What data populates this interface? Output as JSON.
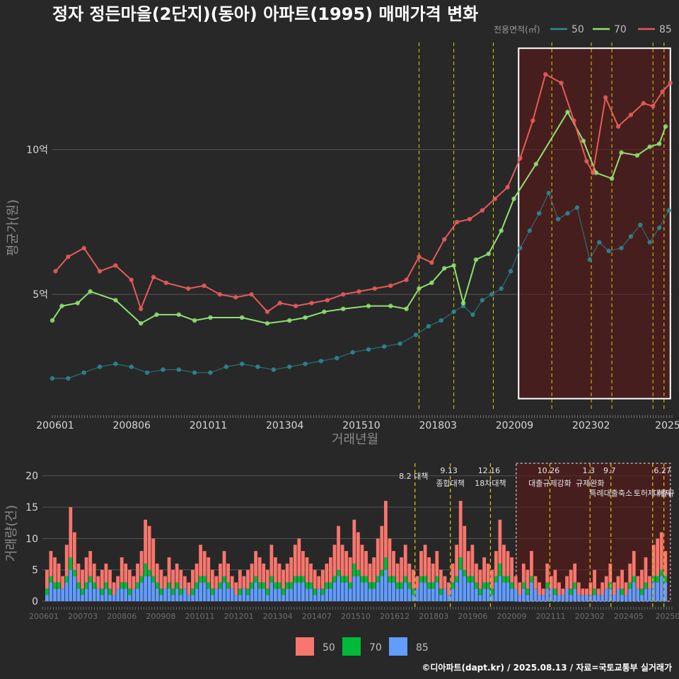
{
  "title": "정자 정든마을(2단지)(동아) 아파트(1995) 매매가격 변화",
  "footer": "©디아파트(dapt.kr) / 2025.08.13 / 자료=국토교통부 실거래가",
  "colors": {
    "background": "#282828",
    "grid": "#555555",
    "s50": "#2e8b93",
    "s70": "#90e070",
    "s85": "#e85a5a",
    "bar50": "#f8766d",
    "bar70": "#00ba38",
    "bar85": "#619cff",
    "policy_line": "#e8c800",
    "highlight_fill": "#5a1818",
    "highlight_stroke": "#ffffff"
  },
  "chart_data": [
    {
      "type": "line",
      "title": "정자 정든마을(2단지)(동아) 아파트(1995) 매매가격 변화",
      "xlabel": "거래년월",
      "ylabel": "평균가(원)",
      "legend_title": "전용면적(㎡)",
      "legend_position": "top-right",
      "x_ticks": [
        "200601",
        "200806",
        "201011",
        "201304",
        "201510",
        "201803",
        "202009",
        "202302",
        "2025"
      ],
      "y_ticks": [
        {
          "value": 5.0,
          "label": "5억"
        },
        {
          "value": 10.0,
          "label": "10억"
        }
      ],
      "ylim": [
        1.0,
        13.7
      ],
      "xlim": [
        2006.0,
        2025.6
      ],
      "grid": true,
      "highlight_range": {
        "x": [
          2020.75,
          2025.55
        ],
        "y": [
          1.4,
          13.5
        ]
      },
      "policy_dates": [
        2017.6,
        2018.7,
        2019.95,
        2021.8,
        2023.05,
        2023.7,
        2025.0,
        2025.35
      ],
      "series": [
        {
          "name": "50",
          "color": "#2e8b93",
          "points": [
            [
              2006.0,
              2.1
            ],
            [
              2006.5,
              2.1
            ],
            [
              2007.0,
              2.3
            ],
            [
              2007.5,
              2.5
            ],
            [
              2008.0,
              2.6
            ],
            [
              2008.5,
              2.5
            ],
            [
              2009.0,
              2.3
            ],
            [
              2009.5,
              2.4
            ],
            [
              2010.0,
              2.4
            ],
            [
              2010.5,
              2.3
            ],
            [
              2011.0,
              2.3
            ],
            [
              2011.5,
              2.5
            ],
            [
              2012.0,
              2.6
            ],
            [
              2012.5,
              2.5
            ],
            [
              2013.0,
              2.4
            ],
            [
              2013.5,
              2.5
            ],
            [
              2014.0,
              2.6
            ],
            [
              2014.5,
              2.7
            ],
            [
              2015.0,
              2.8
            ],
            [
              2015.5,
              3.0
            ],
            [
              2016.0,
              3.1
            ],
            [
              2016.5,
              3.2
            ],
            [
              2017.0,
              3.3
            ],
            [
              2017.5,
              3.6
            ],
            [
              2017.9,
              3.9
            ],
            [
              2018.3,
              4.1
            ],
            [
              2018.7,
              4.4
            ],
            [
              2019.0,
              4.6
            ],
            [
              2019.3,
              4.3
            ],
            [
              2019.6,
              4.8
            ],
            [
              2019.9,
              5.0
            ],
            [
              2020.2,
              5.2
            ],
            [
              2020.5,
              5.8
            ],
            [
              2020.8,
              6.6
            ],
            [
              2021.1,
              7.2
            ],
            [
              2021.4,
              7.8
            ],
            [
              2021.7,
              8.5
            ],
            [
              2022.0,
              7.6
            ],
            [
              2022.3,
              7.8
            ],
            [
              2022.6,
              8.0
            ],
            [
              2023.0,
              6.2
            ],
            [
              2023.3,
              6.8
            ],
            [
              2023.6,
              6.5
            ],
            [
              2024.0,
              6.6
            ],
            [
              2024.3,
              7.0
            ],
            [
              2024.6,
              7.4
            ],
            [
              2024.9,
              6.8
            ],
            [
              2025.2,
              7.3
            ],
            [
              2025.5,
              7.9
            ]
          ]
        },
        {
          "name": "70",
          "color": "#90e070",
          "points": [
            [
              2006.0,
              4.1
            ],
            [
              2006.3,
              4.6
            ],
            [
              2006.8,
              4.7
            ],
            [
              2007.2,
              5.1
            ],
            [
              2008.0,
              4.8
            ],
            [
              2008.8,
              4.0
            ],
            [
              2009.3,
              4.3
            ],
            [
              2010.0,
              4.3
            ],
            [
              2010.5,
              4.1
            ],
            [
              2011.0,
              4.2
            ],
            [
              2012.0,
              4.2
            ],
            [
              2012.8,
              4.0
            ],
            [
              2013.5,
              4.1
            ],
            [
              2014.0,
              4.2
            ],
            [
              2014.6,
              4.4
            ],
            [
              2015.2,
              4.5
            ],
            [
              2016.0,
              4.6
            ],
            [
              2016.7,
              4.6
            ],
            [
              2017.2,
              4.5
            ],
            [
              2017.6,
              5.2
            ],
            [
              2018.0,
              5.4
            ],
            [
              2018.4,
              5.9
            ],
            [
              2018.7,
              6.0
            ],
            [
              2019.0,
              4.7
            ],
            [
              2019.4,
              6.2
            ],
            [
              2019.8,
              6.4
            ],
            [
              2020.2,
              7.2
            ],
            [
              2020.6,
              8.3
            ],
            [
              2021.3,
              9.5
            ],
            [
              2022.3,
              11.3
            ],
            [
              2022.8,
              10.3
            ],
            [
              2023.2,
              9.2
            ],
            [
              2023.7,
              9.0
            ],
            [
              2024.0,
              9.9
            ],
            [
              2024.5,
              9.8
            ],
            [
              2024.9,
              10.1
            ],
            [
              2025.2,
              10.2
            ],
            [
              2025.4,
              10.8
            ]
          ]
        },
        {
          "name": "85",
          "color": "#e85a5a",
          "points": [
            [
              2006.1,
              5.8
            ],
            [
              2006.5,
              6.3
            ],
            [
              2007.0,
              6.6
            ],
            [
              2007.5,
              5.8
            ],
            [
              2008.0,
              6.0
            ],
            [
              2008.5,
              5.5
            ],
            [
              2008.8,
              4.5
            ],
            [
              2009.2,
              5.6
            ],
            [
              2009.6,
              5.4
            ],
            [
              2010.3,
              5.2
            ],
            [
              2010.8,
              5.3
            ],
            [
              2011.3,
              5.0
            ],
            [
              2011.8,
              4.9
            ],
            [
              2012.3,
              5.0
            ],
            [
              2012.8,
              4.4
            ],
            [
              2013.2,
              4.7
            ],
            [
              2013.7,
              4.6
            ],
            [
              2014.2,
              4.7
            ],
            [
              2014.7,
              4.8
            ],
            [
              2015.2,
              5.0
            ],
            [
              2015.7,
              5.1
            ],
            [
              2016.2,
              5.2
            ],
            [
              2016.7,
              5.3
            ],
            [
              2017.2,
              5.5
            ],
            [
              2017.6,
              6.3
            ],
            [
              2018.0,
              6.1
            ],
            [
              2018.4,
              6.9
            ],
            [
              2018.8,
              7.5
            ],
            [
              2019.2,
              7.6
            ],
            [
              2019.6,
              7.9
            ],
            [
              2020.0,
              8.3
            ],
            [
              2020.4,
              8.7
            ],
            [
              2020.8,
              9.7
            ],
            [
              2021.2,
              11.0
            ],
            [
              2021.6,
              12.6
            ],
            [
              2022.1,
              12.3
            ],
            [
              2022.5,
              11.0
            ],
            [
              2022.9,
              9.6
            ],
            [
              2023.1,
              9.2
            ],
            [
              2023.5,
              11.8
            ],
            [
              2023.9,
              10.8
            ],
            [
              2024.3,
              11.2
            ],
            [
              2024.7,
              11.6
            ],
            [
              2025.0,
              11.5
            ],
            [
              2025.3,
              12.0
            ],
            [
              2025.55,
              12.3
            ]
          ]
        }
      ]
    },
    {
      "type": "bar",
      "ylabel": "거래량(건)",
      "ylim": [
        0,
        22
      ],
      "y_ticks": [
        0,
        5,
        10,
        15,
        20
      ],
      "x_ticks": [
        "200601",
        "200703",
        "200806",
        "200908",
        "201011",
        "201201",
        "201304",
        "201407",
        "201510",
        "201612",
        "201803",
        "201906",
        "202009",
        "202111",
        "202302",
        "202405",
        "20250"
      ],
      "legend_position": "bottom",
      "stacked": true,
      "series_names": [
        "50",
        "70",
        "85"
      ],
      "highlight_range": [
        2020.75,
        2025.55
      ],
      "policy_events": [
        {
          "x": 2017.6,
          "date": "8.2 대책",
          "label": ""
        },
        {
          "x": 2018.7,
          "date": "9.13",
          "label": "종합대책"
        },
        {
          "x": 2019.95,
          "date": "12.16",
          "label": "18차대책"
        },
        {
          "x": 2021.8,
          "date": "10.26",
          "label": "대출규제강화"
        },
        {
          "x": 2023.05,
          "date": "1.3",
          "label": "규제완화"
        },
        {
          "x": 2023.7,
          "date": "9.7",
          "label": "특례대출축소"
        },
        {
          "x": 2025.0,
          "date": "",
          "label": "토허제 해제"
        },
        {
          "x": 2025.35,
          "date": "6.27",
          "label": "대출규"
        }
      ],
      "monthly_totals_sample": [
        5,
        8,
        7,
        6,
        4,
        9,
        15,
        11,
        6,
        5,
        7,
        8,
        6,
        4,
        5,
        6,
        5,
        3,
        4,
        7,
        6,
        5,
        4,
        6,
        8,
        13,
        12,
        10,
        6,
        5,
        4,
        7,
        5,
        6,
        5,
        4,
        3,
        5,
        6,
        9,
        8,
        7,
        5,
        4,
        6,
        8,
        6,
        4,
        3,
        5,
        4,
        5,
        6,
        8,
        7,
        6,
        5,
        9,
        7,
        6,
        5,
        6,
        7,
        9,
        10,
        8,
        7,
        6,
        5,
        4,
        5,
        6,
        7,
        9,
        12,
        9,
        8,
        7,
        13,
        11,
        9,
        8,
        6,
        7,
        10,
        12,
        16,
        10,
        8,
        6,
        7,
        9,
        6,
        5,
        4,
        8,
        9,
        7,
        6,
        8,
        5,
        4,
        3,
        6,
        9,
        16,
        12,
        8,
        9,
        6,
        5,
        7,
        6,
        5,
        8,
        13,
        9,
        8,
        7,
        4,
        3,
        6,
        5,
        8,
        4,
        3,
        2,
        6,
        4,
        5,
        3,
        2,
        4,
        5,
        6,
        3,
        2,
        2,
        3,
        5,
        2,
        3,
        4,
        6,
        3,
        4,
        5,
        3,
        6,
        8,
        4,
        5,
        7,
        4,
        9,
        10,
        11,
        8
      ]
    }
  ],
  "legend_bottom": [
    {
      "label": "50",
      "color": "#f8766d"
    },
    {
      "label": "70",
      "color": "#00ba38"
    },
    {
      "label": "85",
      "color": "#619cff"
    }
  ],
  "legend_top": [
    {
      "label": "50",
      "color": "#2e8b93"
    },
    {
      "label": "70",
      "color": "#90e070"
    },
    {
      "label": "85",
      "color": "#e85a5a"
    }
  ]
}
